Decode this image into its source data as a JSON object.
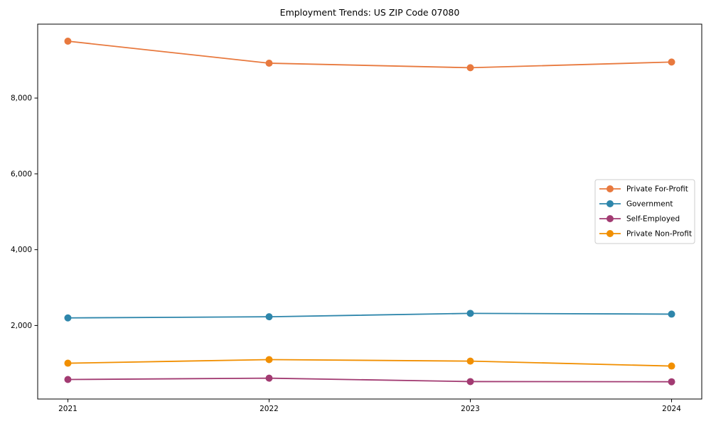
{
  "chart_data": {
    "type": "line",
    "title": "Employment Trends: US ZIP Code 07080",
    "xlabel": "",
    "ylabel": "",
    "categories": [
      "2021",
      "2022",
      "2023",
      "2024"
    ],
    "x": [
      2021,
      2022,
      2023,
      2024
    ],
    "series": [
      {
        "name": "Private For-Profit",
        "color": "#E8793E",
        "values": [
          9500,
          8920,
          8800,
          8950
        ]
      },
      {
        "name": "Government",
        "color": "#2E86AB",
        "values": [
          2200,
          2230,
          2320,
          2300
        ]
      },
      {
        "name": "Self-Employed",
        "color": "#A23B72",
        "values": [
          575,
          610,
          520,
          515
        ]
      },
      {
        "name": "Private Non-Profit",
        "color": "#F18F01",
        "values": [
          1005,
          1100,
          1060,
          930
        ]
      }
    ],
    "yticks": [
      2000,
      4000,
      6000,
      8000
    ],
    "ytick_labels": [
      "2,000",
      "4,000",
      "6,000",
      "8,000"
    ],
    "xlim": [
      2020.85,
      2024.15
    ],
    "ylim": [
      60,
      9950
    ],
    "grid": false,
    "legend_position": "center right",
    "axis_color": "#000000",
    "background_color": "#ffffff",
    "legend_border_color": "#cccccc"
  }
}
